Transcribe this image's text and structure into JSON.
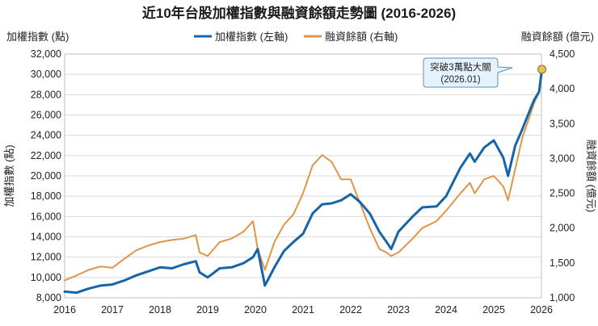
{
  "chart_data": {
    "type": "line",
    "title": "近10年台股加權指數與融資餘額走勢圖 (2016-2026)",
    "left_axis": {
      "label_top": "加權指數 (點)",
      "label_side": "加權指數 (點)",
      "ylim": [
        8000,
        32000
      ],
      "ticks": [
        "8,000",
        "10,000",
        "12,000",
        "14,000",
        "16,000",
        "18,000",
        "20,000",
        "22,000",
        "24,000",
        "26,000",
        "28,000",
        "30,000",
        "32,000"
      ],
      "tick_values": [
        8000,
        10000,
        12000,
        14000,
        16000,
        18000,
        20000,
        22000,
        24000,
        26000,
        28000,
        30000,
        32000
      ]
    },
    "right_axis": {
      "label_top": "融資餘額 (億元)",
      "label_side": "融資餘額 (億元)",
      "ylim": [
        1000,
        4500
      ],
      "ticks": [
        "1,000",
        "1,500",
        "2,000",
        "2,500",
        "3,000",
        "3,500",
        "4,000",
        "4,500"
      ],
      "tick_values": [
        1000,
        1500,
        2000,
        2500,
        3000,
        3500,
        4000,
        4500
      ]
    },
    "x_axis": {
      "xlim": [
        2016,
        2026
      ],
      "ticks": [
        "2016",
        "2017",
        "2018",
        "2019",
        "2020",
        "2021",
        "2022",
        "2023",
        "2024",
        "2025",
        "2026"
      ],
      "tick_values": [
        2016,
        2017,
        2018,
        2019,
        2020,
        2021,
        2022,
        2023,
        2024,
        2025,
        2026
      ]
    },
    "legend": {
      "position": "top-center"
    },
    "series": [
      {
        "name": "加權指數 (左軸)",
        "axis": "left",
        "color": "#1565a8",
        "x": [
          2016.0,
          2016.25,
          2016.5,
          2016.75,
          2017.0,
          2017.25,
          2017.5,
          2017.75,
          2018.0,
          2018.25,
          2018.5,
          2018.75,
          2018.83,
          2019.0,
          2019.25,
          2019.5,
          2019.75,
          2019.95,
          2020.05,
          2020.2,
          2020.4,
          2020.6,
          2020.8,
          2021.0,
          2021.2,
          2021.4,
          2021.6,
          2021.8,
          2022.0,
          2022.2,
          2022.4,
          2022.6,
          2022.75,
          2022.85,
          2023.0,
          2023.3,
          2023.5,
          2023.8,
          2024.0,
          2024.3,
          2024.5,
          2024.6,
          2024.8,
          2025.0,
          2025.2,
          2025.3,
          2025.45,
          2025.6,
          2025.75,
          2025.85,
          2025.95,
          2026.01
        ],
        "values": [
          8600,
          8500,
          8900,
          9200,
          9300,
          9700,
          10200,
          10600,
          11000,
          10900,
          11300,
          11600,
          10500,
          10000,
          10900,
          11000,
          11400,
          12000,
          12800,
          9200,
          11000,
          12600,
          13500,
          14300,
          16300,
          17200,
          17300,
          17600,
          18200,
          17400,
          16300,
          14500,
          13500,
          12800,
          14500,
          16000,
          16900,
          17000,
          18000,
          20800,
          22200,
          21400,
          22800,
          23500,
          21800,
          20000,
          23000,
          24600,
          26400,
          27500,
          28300,
          30500
        ]
      },
      {
        "name": "融資餘額 (右軸)",
        "axis": "right",
        "color": "#e0954a",
        "x": [
          2016.0,
          2016.25,
          2016.5,
          2016.75,
          2017.0,
          2017.25,
          2017.5,
          2017.75,
          2018.0,
          2018.25,
          2018.5,
          2018.75,
          2018.83,
          2019.0,
          2019.25,
          2019.5,
          2019.75,
          2019.95,
          2020.05,
          2020.2,
          2020.4,
          2020.6,
          2020.8,
          2021.0,
          2021.2,
          2021.4,
          2021.6,
          2021.8,
          2022.0,
          2022.2,
          2022.4,
          2022.6,
          2022.75,
          2022.85,
          2023.0,
          2023.3,
          2023.5,
          2023.8,
          2024.0,
          2024.3,
          2024.5,
          2024.6,
          2024.8,
          2025.0,
          2025.2,
          2025.3,
          2025.45,
          2025.6,
          2025.75,
          2025.85,
          2025.95,
          2026.01
        ],
        "values": [
          1250,
          1320,
          1400,
          1450,
          1430,
          1560,
          1680,
          1750,
          1800,
          1830,
          1850,
          1900,
          1650,
          1600,
          1800,
          1850,
          1950,
          2100,
          1700,
          1400,
          1800,
          2050,
          2200,
          2500,
          2900,
          3050,
          2950,
          2700,
          2700,
          2350,
          2000,
          1700,
          1650,
          1600,
          1650,
          1850,
          2000,
          2100,
          2250,
          2500,
          2650,
          2500,
          2700,
          2750,
          2600,
          2400,
          2850,
          3300,
          3600,
          3800,
          3950,
          4200
        ]
      }
    ],
    "annotation": {
      "line1": "突破3萬點大關",
      "line2": "(2026.01)",
      "x": 2026.01,
      "y": 30500,
      "axis": "left"
    }
  }
}
